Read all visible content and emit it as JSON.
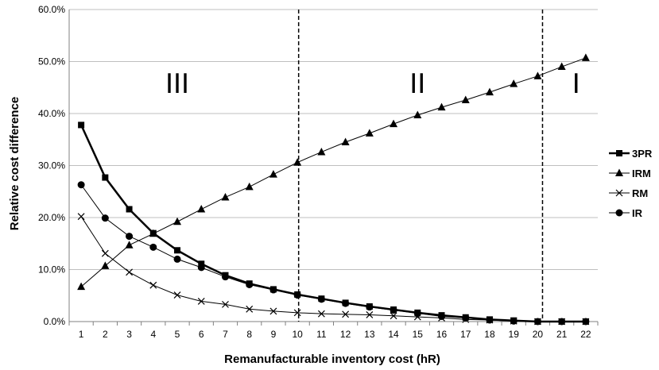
{
  "chart_data": {
    "type": "line",
    "title": "",
    "xlabel": "Remanufacturable inventory cost (hR)",
    "ylabel": "Relative cost difference",
    "categories": [
      "1",
      "2",
      "3",
      "4",
      "5",
      "6",
      "7",
      "8",
      "9",
      "10",
      "11",
      "12",
      "13",
      "14",
      "15",
      "16",
      "17",
      "18",
      "19",
      "20",
      "21",
      "22"
    ],
    "ylim": [
      0,
      60
    ],
    "yticks": [
      "0.0%",
      "10.0%",
      "20.0%",
      "30.0%",
      "40.0%",
      "50.0%",
      "60.0%"
    ],
    "grid": "horizontal",
    "legend_position": "right",
    "series": [
      {
        "name": "3PR",
        "marker": "square",
        "stroke_width": 2.5,
        "color": "#000000",
        "values": [
          37.8,
          27.7,
          21.6,
          17.0,
          13.7,
          11.1,
          8.9,
          7.3,
          6.2,
          5.2,
          4.4,
          3.6,
          2.9,
          2.3,
          1.7,
          1.2,
          0.8,
          0.4,
          0.2,
          0.0,
          0.0,
          0.0
        ]
      },
      {
        "name": "IRM",
        "marker": "triangle",
        "stroke_width": 1,
        "color": "#000000",
        "values": [
          6.7,
          10.7,
          14.7,
          16.9,
          19.2,
          21.6,
          23.9,
          25.9,
          28.3,
          30.6,
          32.6,
          34.5,
          36.2,
          38.0,
          39.7,
          41.2,
          42.6,
          44.1,
          45.7,
          47.2,
          49.0,
          50.7
        ]
      },
      {
        "name": "RM",
        "marker": "x",
        "stroke_width": 1,
        "color": "#000000",
        "values": [
          20.2,
          13.1,
          9.5,
          7.0,
          5.1,
          3.9,
          3.3,
          2.4,
          2.0,
          1.7,
          1.5,
          1.4,
          1.3,
          1.1,
          0.9,
          0.7,
          0.4,
          0.3,
          0.1,
          0.0,
          0.0,
          0.0
        ]
      },
      {
        "name": "IR",
        "marker": "circle",
        "stroke_width": 1,
        "color": "#000000",
        "values": [
          26.3,
          19.9,
          16.4,
          14.3,
          12.0,
          10.4,
          8.6,
          7.1,
          6.1,
          5.1,
          4.3,
          3.5,
          2.8,
          2.2,
          1.6,
          1.0,
          0.7,
          0.3,
          0.1,
          0.0,
          0.0,
          0.0
        ]
      }
    ],
    "boundaries": [
      10.05,
      20.2
    ],
    "regions": [
      {
        "label": "III",
        "x_center": 5.0
      },
      {
        "label": "II",
        "x_center": 15.0
      },
      {
        "label": "I",
        "x_center": 21.6
      }
    ]
  }
}
